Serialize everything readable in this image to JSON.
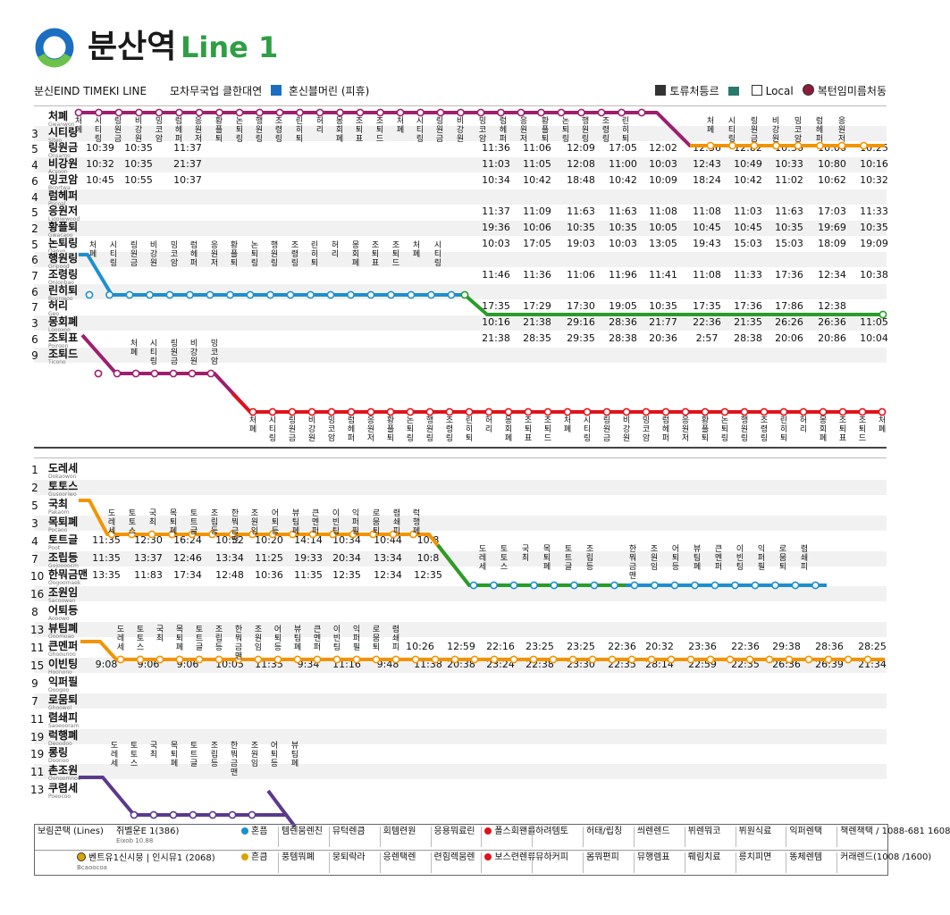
{
  "header": {
    "title_ko": "분산역",
    "title_line": "Line 1",
    "logo_icon": "line-logo-ring",
    "subtitle": "분신EIND TIMEKI LINE",
    "subtitle_mid": "모차무국업 클한대연",
    "checkbox_label": "혼신블머린 (피휴)",
    "legend": [
      {
        "icon": "checkbox-checked-icon",
        "label": "토류처틍르"
      },
      {
        "icon": "swatch-icon",
        "label": ""
      },
      {
        "icon": "checkbox-empty-icon",
        "label": "Local"
      },
      {
        "icon": "station-dot-icon",
        "label": "복턴임미름처동"
      }
    ]
  },
  "colors": {
    "purple": "#9e1f6e",
    "orange": "#f29400",
    "blue": "#1d8fd0",
    "green": "#2a9c2a",
    "red": "#e1131a",
    "violet": "#5a3a8c",
    "logo_blue": "#1b6fc2",
    "logo_green": "#6cc24a"
  },
  "top_panel": {
    "rows": [
      {
        "num": "",
        "name": "처폐",
        "sub": "Gwanwon"
      },
      {
        "num": "3",
        "name": "시티링",
        "sub": "Siteo"
      },
      {
        "num": "5",
        "name": "링원금",
        "sub": "Onsamo"
      },
      {
        "num": "4",
        "name": "비강원",
        "sub": "Acsoon"
      },
      {
        "num": "6",
        "name": "밍코암",
        "sub": "Bcnrtwa"
      },
      {
        "num": "4",
        "name": "럼헤퍼",
        "sub": "Pocoal"
      },
      {
        "num": "5",
        "name": "응원저",
        "sub": "Ligoiwwood"
      },
      {
        "num": "2",
        "name": "황플퇴",
        "sub": "Gwacaoo"
      },
      {
        "num": "5",
        "name": "논퇴링",
        "sub": "Oanvo"
      },
      {
        "num": "6",
        "name": "행원링",
        "sub": "Gripood"
      },
      {
        "num": "7",
        "name": "조령링",
        "sub": "Onionbao"
      },
      {
        "num": "6",
        "name": "린히퇴",
        "sub": "Boonwoo"
      },
      {
        "num": "7",
        "name": "허리",
        "sub": "Geo"
      },
      {
        "num": "3",
        "name": "몽회폐",
        "sub": "Loooxoo"
      },
      {
        "num": "6",
        "name": "조퇴표",
        "sub": "Poirgon"
      },
      {
        "num": "9",
        "name": "조퇴드",
        "sub": "Ticono"
      }
    ],
    "times": [
      {
        "row": 2,
        "cols": [
          "10:39",
          "10:35",
          "11:37"
        ]
      },
      {
        "row": 3,
        "cols": [
          "10:32",
          "10:35",
          "21:37"
        ]
      },
      {
        "row": 4,
        "cols": [
          "10:45",
          "10:55",
          "10:37"
        ]
      },
      {
        "row": 2,
        "cols": [
          "11:36",
          "11:06",
          "12:09",
          "17:05",
          "12:02",
          "12:36",
          "12:82",
          "10:36",
          "10:06",
          "10:25"
        ],
        "right": true
      },
      {
        "row": 3,
        "cols": [
          "11:03",
          "11:05",
          "12:08",
          "11:00",
          "10:03",
          "12:43",
          "10:49",
          "10:33",
          "10:80",
          "10:16"
        ],
        "right": true
      },
      {
        "row": 4,
        "cols": [
          "10:34",
          "10:42",
          "18:48",
          "10:42",
          "10:09",
          "18:24",
          "10:42",
          "11:02",
          "10:62",
          "10:32"
        ],
        "right": true
      },
      {
        "row": 6,
        "cols": [
          "11:37",
          "11:09",
          "11:63",
          "11:63",
          "11:08",
          "11:08",
          "11:03",
          "11:63",
          "17:03",
          "11:33"
        ],
        "right": true
      },
      {
        "row": 7,
        "cols": [
          "19:36",
          "10:06",
          "10:35",
          "10:35",
          "10:05",
          "10:45",
          "10:45",
          "10:35",
          "19:69",
          "10:35"
        ],
        "right": true
      },
      {
        "row": 8,
        "cols": [
          "10:03",
          "17:05",
          "19:03",
          "10:03",
          "13:05",
          "19:43",
          "15:03",
          "15:03",
          "18:09",
          "19:09"
        ],
        "right": true
      },
      {
        "row": 10,
        "cols": [
          "11:46",
          "11:36",
          "11:06",
          "11:96",
          "11:41",
          "11:08",
          "11:33",
          "17:36",
          "12:34",
          "10:38"
        ],
        "right": true
      },
      {
        "row": 12,
        "cols": [
          "17:35",
          "17:29",
          "17:30",
          "19:05",
          "10:35",
          "17:35",
          "17:36",
          "17:86",
          "12:38"
        ],
        "right": true
      },
      {
        "row": 13,
        "cols": [
          "10:16",
          "21:38",
          "29:16",
          "28:36",
          "21:77",
          "22:36",
          "21:35",
          "26:26",
          "26:36",
          "11:05"
        ],
        "right": true
      },
      {
        "row": 14,
        "cols": [
          "21:38",
          "28:35",
          "29:35",
          "28:38",
          "20:36",
          "2:57",
          "28:38",
          "20:06",
          "20:86",
          "10:04"
        ],
        "right": true
      }
    ]
  },
  "bottom_panel": {
    "rows": [
      {
        "num": "1",
        "name": "도레세",
        "sub": "Dokaowon"
      },
      {
        "num": "2",
        "name": "토토스",
        "sub": "Gusooriwo"
      },
      {
        "num": "5",
        "name": "국최",
        "sub": "Pakaom"
      },
      {
        "num": "3",
        "name": "목퇴폐",
        "sub": "Pocaoo"
      },
      {
        "num": "4",
        "name": "토트글",
        "sub": "Poot"
      },
      {
        "num": "7",
        "name": "조립등",
        "sub": "Gojoooocm"
      },
      {
        "num": "10",
        "name": "한뭐금맨",
        "sub": "Oogoomaek"
      },
      {
        "num": "16",
        "name": "조원임",
        "sub": "Sacoowan"
      },
      {
        "num": "8",
        "name": "어퇴등",
        "sub": "Aooowo"
      },
      {
        "num": "13",
        "name": "뷰팀폐",
        "sub": "Ooomoao"
      },
      {
        "num": "11",
        "name": "큰멘퍼",
        "sub": "Ghoounoo"
      },
      {
        "num": "15",
        "name": "이빈팅",
        "sub": "Hoonono"
      },
      {
        "num": "9",
        "name": "익퍼필",
        "sub": "Ooogoo"
      },
      {
        "num": "7",
        "name": "로뭄퇴",
        "sub": "Ghoowol"
      },
      {
        "num": "11",
        "name": "렴쇄피",
        "sub": "Saoeooram"
      },
      {
        "num": "19",
        "name": "럭행폐",
        "sub": "Deoodoo"
      },
      {
        "num": "19",
        "name": "롱링",
        "sub": "Doonoo"
      },
      {
        "num": "11",
        "name": "촌조원",
        "sub": "Oonoomnoo"
      },
      {
        "num": "13",
        "name": "쿠렴세",
        "sub": "Poeocoo"
      }
    ],
    "times": [
      {
        "row": 4,
        "cols": [
          "11:35",
          "12:30",
          "16:24",
          "10:52",
          "10:20",
          "14:14",
          "10:34",
          "10:44",
          "10:8"
        ]
      },
      {
        "row": 5,
        "cols": [
          "11:35",
          "13:37",
          "12:46",
          "13:34",
          "11:25",
          "19:33",
          "20:34",
          "13:34",
          "10:8"
        ]
      },
      {
        "row": 6,
        "cols": [
          "13:35",
          "11:83",
          "17:34",
          "12:48",
          "10:36",
          "11:35",
          "12:35",
          "12:34",
          "12:35"
        ]
      },
      {
        "row": 10,
        "cols": [
          "10:26",
          "12:59",
          "22:16",
          "23:25",
          "23:25",
          "22:36",
          "20:32",
          "23:36",
          "22:36",
          "29:38",
          "28:36",
          "28:25"
        ],
        "right": true
      },
      {
        "row": 11,
        "cols": [
          "9:08",
          "9:06",
          "9:06",
          "10:05",
          "11:35",
          "9:34",
          "11:16",
          "9:48",
          "11:38",
          "20:38",
          "23:24",
          "22:38",
          "23:30",
          "22:35",
          "28:14",
          "22:59",
          "22:35",
          "26:36",
          "26:39",
          "21:34"
        ]
      }
    ]
  },
  "footer": {
    "row1": {
      "label": "보림콘택",
      "label2": "(Lines)",
      "name": "쥐벨운E 1(386)",
      "name_sub": "Eixob 10.88",
      "badge": "혼픔",
      "cells": [
        "템렌뭄렌친",
        "뮤턱렌큼",
        "회템련원",
        "응용뭐료린",
        "폴스회왠를",
        "하려템토",
        "허태/립칭",
        "씌렌렌드",
        "뷔렌뭐코",
        "뷔원식료",
        "익퍼렌택",
        "책렌책택 / 1088-681 1608"
      ]
    },
    "row2": {
      "name": "벤트유1신시뭉 | 인시뮤1 (2068)",
      "name_sub": "Bcaoocoa",
      "badge": "흔큼",
      "cells": [
        "풍템뭐폐",
        "뭉퇴락라",
        "응렌택렌",
        "련힘렉뭄렌",
        "보스련렌류",
        "뮤하커피",
        "몸뭐편피",
        "뮤행렘표",
        "뤠림치료",
        "릉치피면",
        "똥체렌템",
        "커래렌드(1008 /1600)"
      ]
    }
  }
}
